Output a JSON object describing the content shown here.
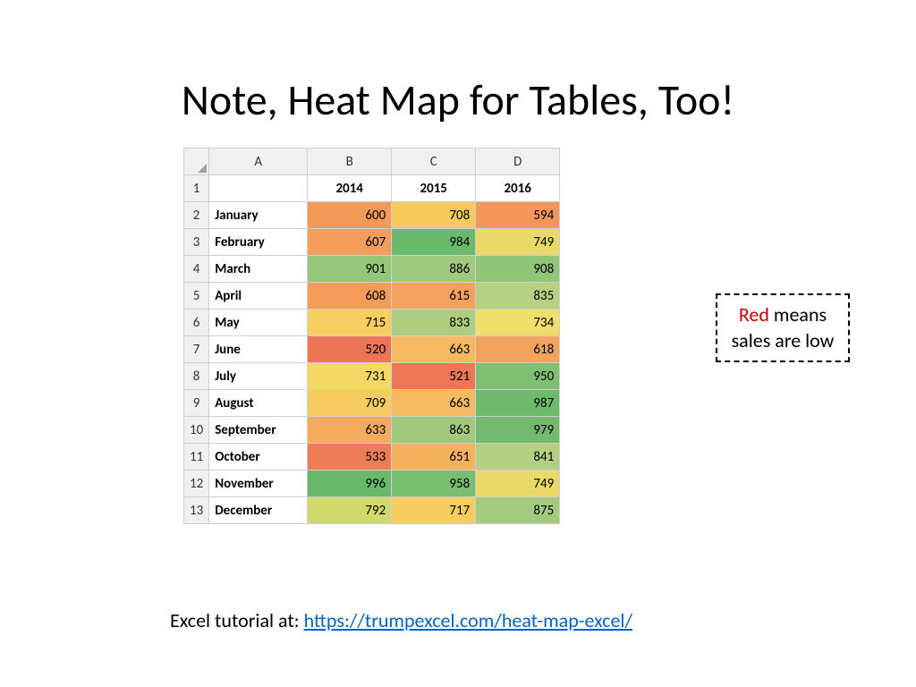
{
  "title": "Note, Heat Map for Tables, Too!",
  "table": {
    "type": "heatmap-table",
    "col_letters": [
      "A",
      "B",
      "C",
      "D"
    ],
    "row_numbers": [
      "1",
      "2",
      "3",
      "4",
      "5",
      "6",
      "7",
      "8",
      "9",
      "10",
      "11",
      "12",
      "13"
    ],
    "years": [
      "2014",
      "2015",
      "2016"
    ],
    "months": [
      "January",
      "February",
      "March",
      "April",
      "May",
      "June",
      "July",
      "August",
      "September",
      "October",
      "November",
      "December"
    ],
    "values": [
      [
        600,
        708,
        594
      ],
      [
        607,
        984,
        749
      ],
      [
        901,
        886,
        908
      ],
      [
        608,
        615,
        835
      ],
      [
        715,
        833,
        734
      ],
      [
        520,
        663,
        618
      ],
      [
        731,
        521,
        950
      ],
      [
        709,
        663,
        987
      ],
      [
        633,
        863,
        979
      ],
      [
        533,
        651,
        841
      ],
      [
        996,
        958,
        749
      ],
      [
        792,
        717,
        875
      ]
    ],
    "cell_colors": [
      [
        "#f39a5b",
        "#f6c95e",
        "#f2965a"
      ],
      [
        "#f39c5c",
        "#6ab96c",
        "#e8d968"
      ],
      [
        "#94c579",
        "#9fc97c",
        "#90c477"
      ],
      [
        "#f39c5c",
        "#f4a15d",
        "#b6d183"
      ],
      [
        "#f9ce61",
        "#afce81",
        "#f1dd6b"
      ],
      [
        "#ec7556",
        "#f5b95f",
        "#f4a35d"
      ],
      [
        "#f4d764",
        "#ec7656",
        "#7fc072"
      ],
      [
        "#f7cb5f",
        "#f5b95f",
        "#6eba6d"
      ],
      [
        "#f4ab5e",
        "#a1c97d",
        "#72bb6e"
      ],
      [
        "#ed7d56",
        "#f5b15e",
        "#b3d082"
      ],
      [
        "#67b86b",
        "#79be70",
        "#e8d968"
      ],
      [
        "#d0d96c",
        "#f8cd60",
        "#a3ca7d"
      ]
    ],
    "header_bg": "#f0f0f0",
    "grid_color": "#d0d0d0",
    "font_size": 15,
    "header_font_weight": 700
  },
  "callout": {
    "red_word": "Red",
    "rest": " means sales are low",
    "red_color": "#c00000",
    "border_style": "dashed",
    "border_color": "#000000",
    "font_size": 22
  },
  "footer": {
    "prefix": "Excel tutorial at: ",
    "link_text": "https://trumpexcel.com/heat-map-excel/",
    "link_color": "#0563c1",
    "font_size": 22
  }
}
